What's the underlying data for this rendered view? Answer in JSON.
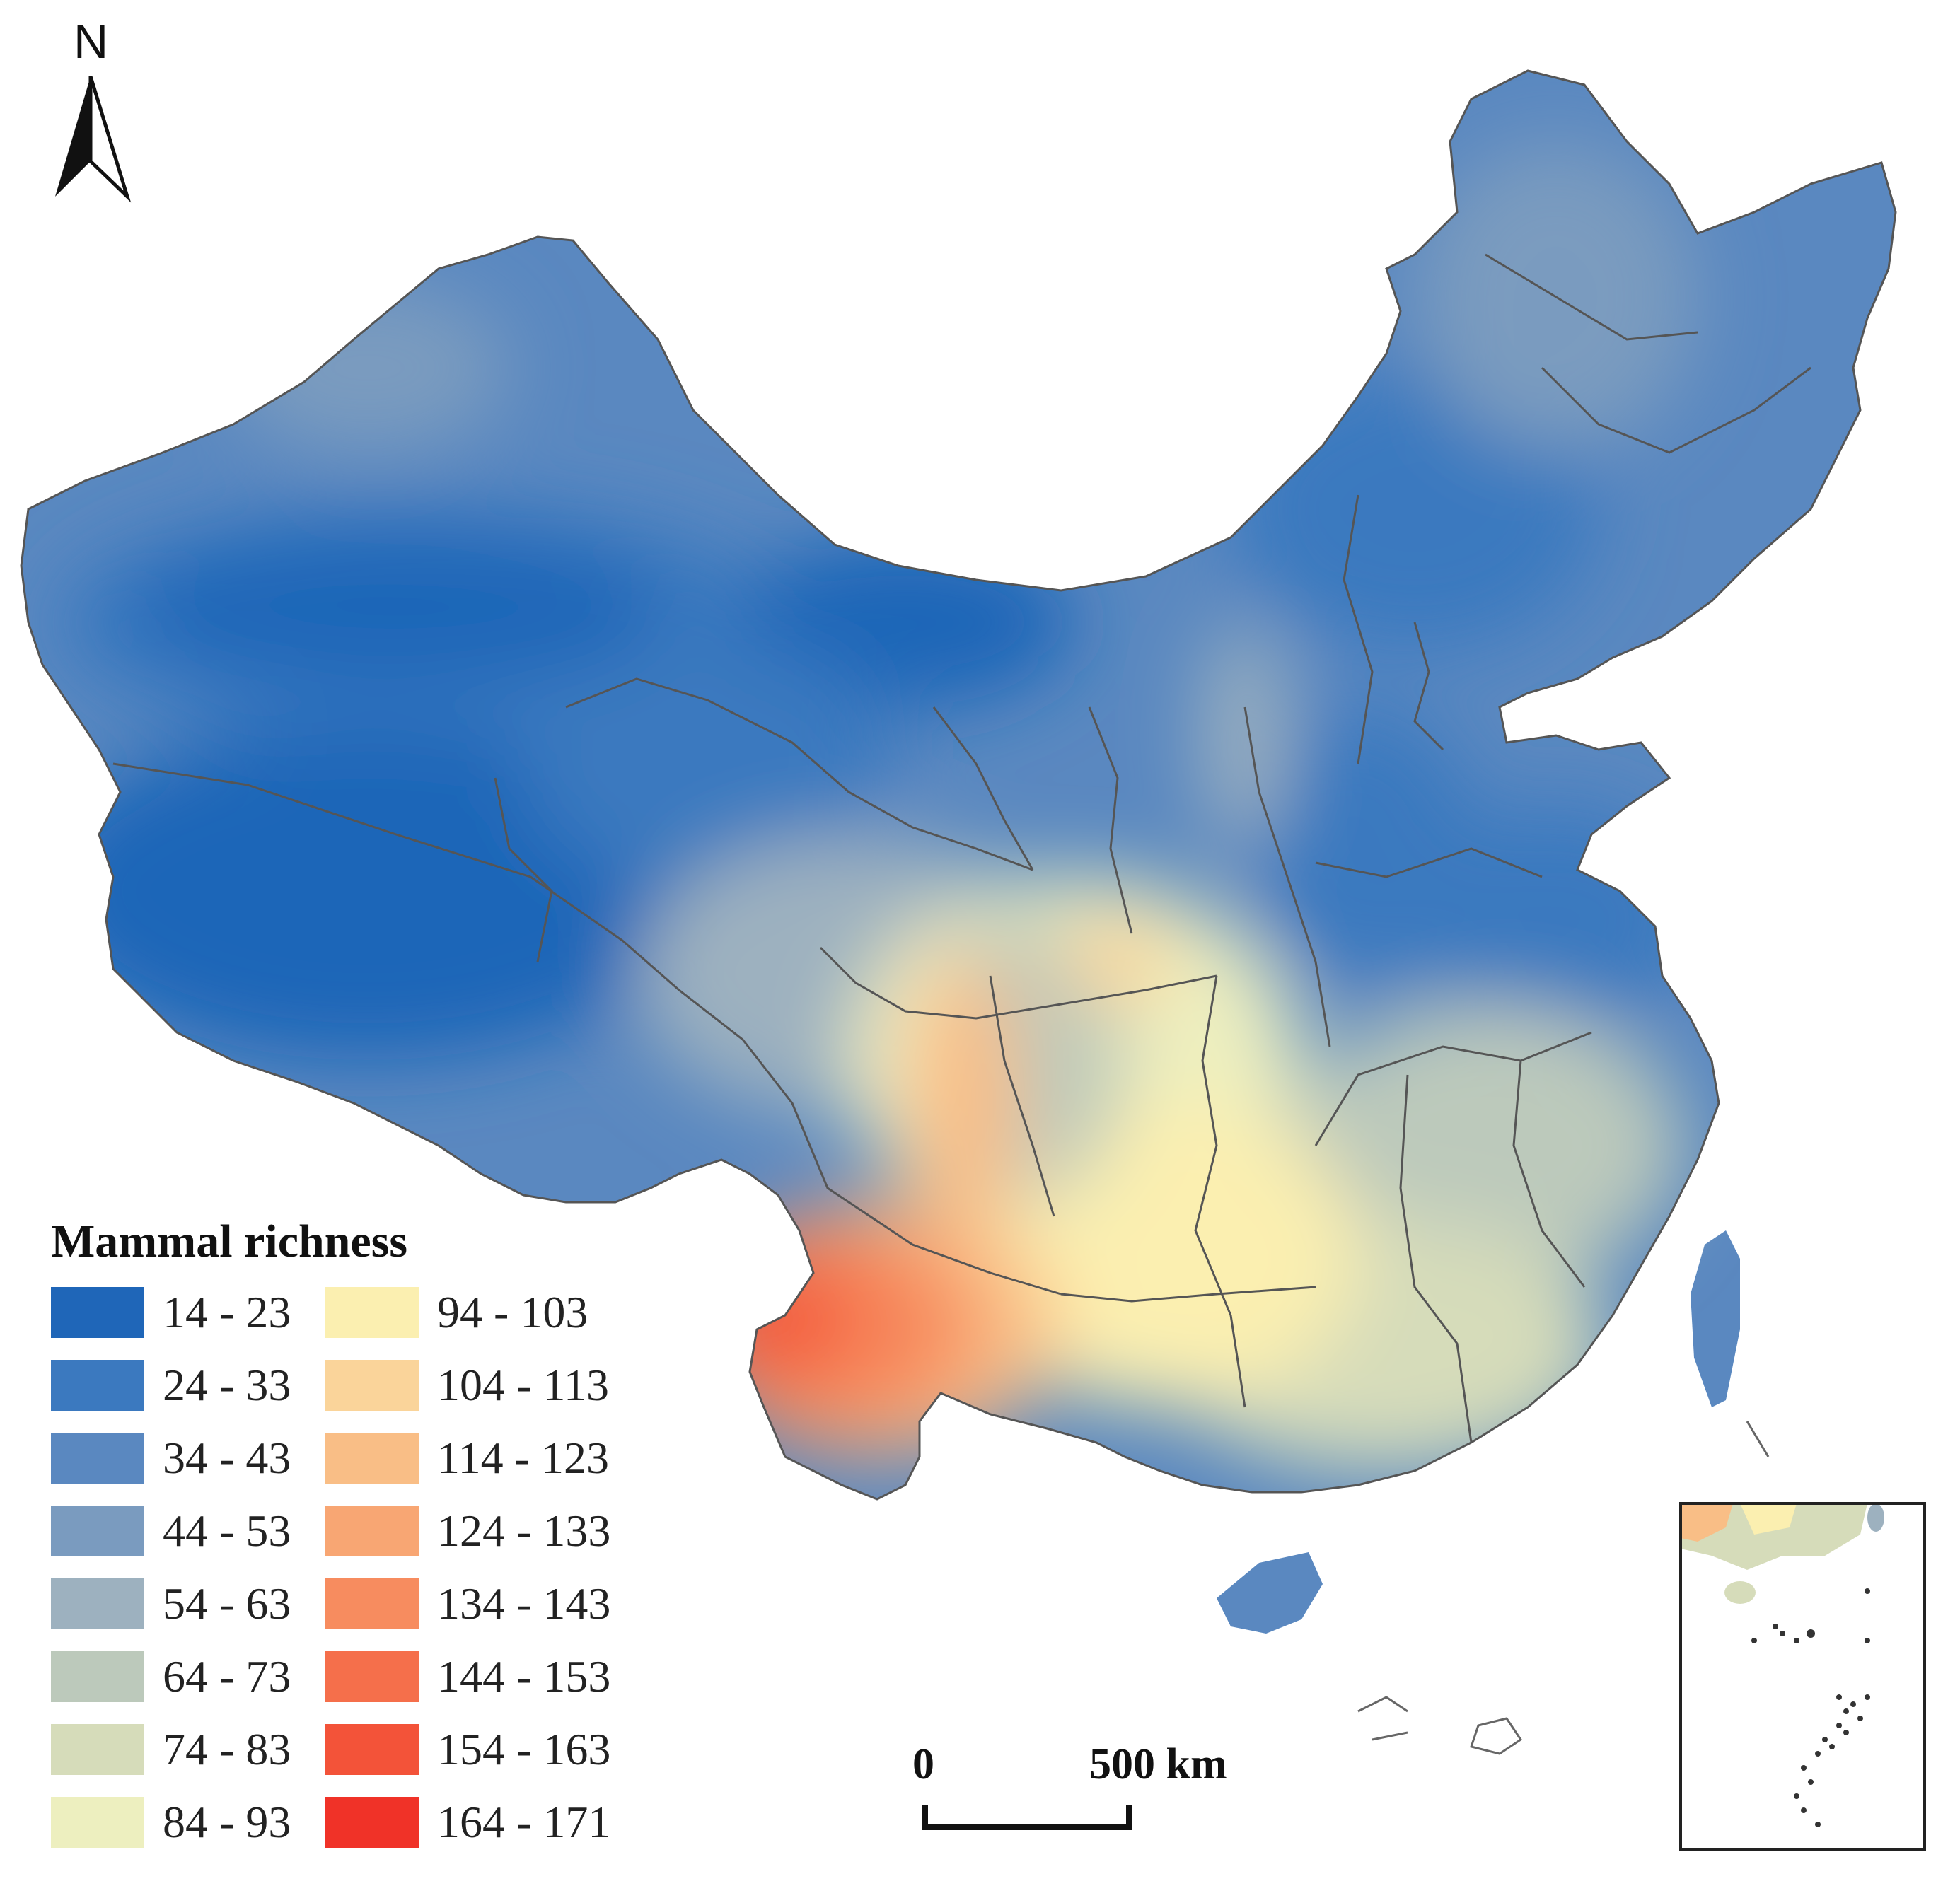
{
  "north_label": "N",
  "legend": {
    "title": "Mammal richness",
    "classes": [
      {
        "label": "14 - 23",
        "color": "#1f66b8"
      },
      {
        "label": "24 - 33",
        "color": "#3b79bf"
      },
      {
        "label": "34 - 43",
        "color": "#5a88c0"
      },
      {
        "label": "44 - 53",
        "color": "#7a9bbf"
      },
      {
        "label": "54 - 63",
        "color": "#9db1bf"
      },
      {
        "label": "64 - 73",
        "color": "#bcc9bb"
      },
      {
        "label": "74 - 83",
        "color": "#d6dcba"
      },
      {
        "label": "84 - 93",
        "color": "#edefbf"
      },
      {
        "label": "94 - 103",
        "color": "#fbefb0"
      },
      {
        "label": "104 - 113",
        "color": "#fad49a"
      },
      {
        "label": "114 - 123",
        "color": "#f9be86"
      },
      {
        "label": "124 - 133",
        "color": "#f8a673"
      },
      {
        "label": "134 - 143",
        "color": "#f78c5f"
      },
      {
        "label": "144 - 153",
        "color": "#f56f4b"
      },
      {
        "label": "154 - 163",
        "color": "#f35339"
      },
      {
        "label": "164 - 171",
        "color": "#f03228"
      }
    ]
  },
  "scale_bar": {
    "start_label": "0",
    "end_label": "500 km"
  },
  "colors": {
    "boundary": "#555555",
    "coast": "#444444"
  }
}
